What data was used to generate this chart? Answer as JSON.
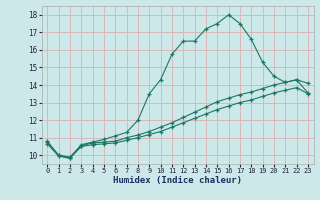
{
  "xlabel": "Humidex (Indice chaleur)",
  "background_color": "#cce8e8",
  "grid_color": "#d8b8b8",
  "line_color": "#1a7868",
  "xlim": [
    -0.5,
    23.5
  ],
  "ylim": [
    9.5,
    18.5
  ],
  "xticks": [
    0,
    1,
    2,
    3,
    4,
    5,
    6,
    7,
    8,
    9,
    10,
    11,
    12,
    13,
    14,
    15,
    16,
    17,
    18,
    19,
    20,
    21,
    22,
    23
  ],
  "yticks": [
    10,
    11,
    12,
    13,
    14,
    15,
    16,
    17,
    18
  ],
  "line1_x": [
    0,
    1,
    2,
    3,
    4,
    5,
    6,
    7,
    8,
    9,
    10,
    11,
    12,
    13,
    14,
    15,
    16,
    17,
    18,
    19,
    20,
    21,
    22,
    23
  ],
  "line1_y": [
    10.8,
    10.0,
    9.85,
    10.6,
    10.75,
    10.9,
    11.1,
    11.3,
    12.0,
    13.5,
    14.3,
    15.75,
    16.5,
    16.5,
    17.2,
    17.5,
    18.0,
    17.5,
    16.6,
    15.3,
    14.5,
    14.15,
    14.3,
    14.1
  ],
  "line2_x": [
    0,
    1,
    2,
    3,
    4,
    5,
    6,
    7,
    8,
    9,
    10,
    11,
    12,
    13,
    14,
    15,
    16,
    17,
    18,
    19,
    20,
    21,
    22,
    23
  ],
  "line2_y": [
    10.75,
    10.0,
    9.9,
    10.55,
    10.7,
    10.75,
    10.8,
    11.0,
    11.15,
    11.35,
    11.6,
    11.85,
    12.15,
    12.45,
    12.75,
    13.05,
    13.25,
    13.45,
    13.6,
    13.8,
    14.0,
    14.15,
    14.3,
    13.55
  ],
  "line3_x": [
    0,
    1,
    2,
    3,
    4,
    5,
    6,
    7,
    8,
    9,
    10,
    11,
    12,
    13,
    14,
    15,
    16,
    17,
    18,
    19,
    20,
    21,
    22,
    23
  ],
  "line3_y": [
    10.65,
    9.95,
    9.82,
    10.5,
    10.6,
    10.65,
    10.7,
    10.85,
    11.0,
    11.18,
    11.35,
    11.6,
    11.85,
    12.1,
    12.35,
    12.6,
    12.8,
    13.0,
    13.15,
    13.35,
    13.55,
    13.7,
    13.85,
    13.5
  ]
}
